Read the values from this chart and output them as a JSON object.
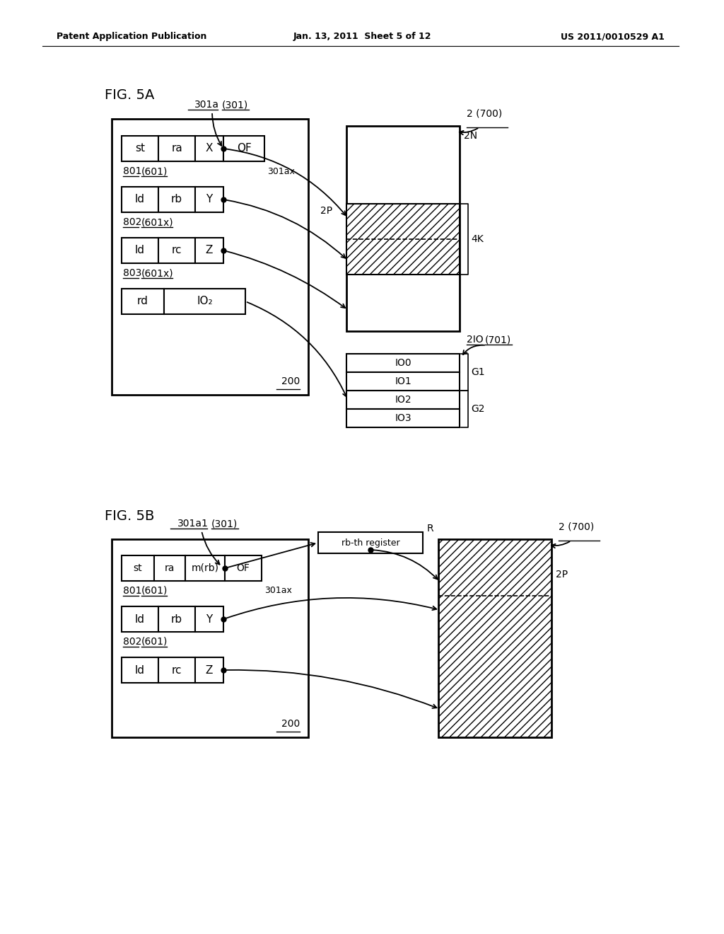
{
  "bg_color": "#ffffff",
  "header_left": "Patent Application Publication",
  "header_mid": "Jan. 13, 2011  Sheet 5 of 12",
  "header_right": "US 2011/0010529 A1",
  "fig5a_label": "FIG. 5A",
  "fig5b_label": "FIG. 5B"
}
